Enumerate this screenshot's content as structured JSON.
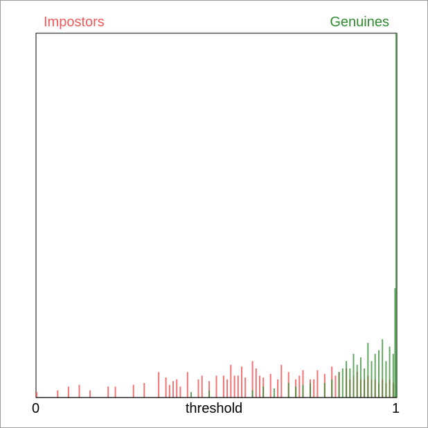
{
  "chart_data": {
    "type": "bar",
    "xlabel": "threshold",
    "xlim": [
      0,
      1
    ],
    "x_ticks": [
      "0",
      "1"
    ],
    "ylim": [
      0,
      1
    ],
    "legend_position": "top",
    "colors": {
      "impostors": "#f05a5a",
      "genuines": "#2e8b2e",
      "overlap": "#b0402a",
      "axis": "#000000"
    },
    "series": [
      {
        "name": "Impostors",
        "x": [
          0.002,
          0.06,
          0.09,
          0.12,
          0.15,
          0.2,
          0.22,
          0.27,
          0.3,
          0.34,
          0.36,
          0.37,
          0.38,
          0.39,
          0.4,
          0.42,
          0.45,
          0.46,
          0.48,
          0.5,
          0.52,
          0.53,
          0.54,
          0.55,
          0.56,
          0.57,
          0.58,
          0.6,
          0.61,
          0.62,
          0.63,
          0.65,
          0.67,
          0.68,
          0.7,
          0.72,
          0.73,
          0.74,
          0.76,
          0.77,
          0.78,
          0.8,
          0.82,
          0.83,
          0.84,
          0.86,
          0.87,
          0.88,
          0.89,
          0.9,
          0.91,
          0.92,
          0.93,
          0.94,
          0.95,
          0.96,
          0.97,
          0.98,
          0.99
        ],
        "values": [
          0.015,
          0.02,
          0.03,
          0.035,
          0.02,
          0.03,
          0.03,
          0.035,
          0.04,
          0.07,
          0.055,
          0.035,
          0.045,
          0.05,
          0.03,
          0.07,
          0.05,
          0.06,
          0.045,
          0.06,
          0.06,
          0.05,
          0.09,
          0.06,
          0.06,
          0.085,
          0.055,
          0.1,
          0.08,
          0.06,
          0.055,
          0.065,
          0.05,
          0.09,
          0.07,
          0.05,
          0.06,
          0.075,
          0.05,
          0.05,
          0.075,
          0.065,
          0.085,
          0.06,
          0.07,
          0.08,
          0.05,
          0.06,
          0.07,
          0.05,
          0.05,
          0.06,
          0.05,
          0.05,
          0.04,
          0.05,
          0.04,
          0.05,
          0.04
        ]
      },
      {
        "name": "Genuines",
        "x": [
          0.43,
          0.48,
          0.6,
          0.63,
          0.66,
          0.7,
          0.72,
          0.74,
          0.76,
          0.8,
          0.82,
          0.84,
          0.85,
          0.86,
          0.87,
          0.88,
          0.89,
          0.9,
          0.91,
          0.92,
          0.93,
          0.94,
          0.95,
          0.96,
          0.97,
          0.98,
          0.99,
          0.995,
          0.998
        ],
        "values": [
          0.015,
          0.02,
          0.02,
          0.03,
          0.025,
          0.04,
          0.03,
          0.035,
          0.04,
          0.04,
          0.05,
          0.07,
          0.08,
          0.1,
          0.08,
          0.12,
          0.09,
          0.11,
          0.08,
          0.15,
          0.1,
          0.12,
          0.13,
          0.16,
          0.1,
          0.14,
          0.12,
          0.3,
          1.0
        ]
      }
    ]
  }
}
